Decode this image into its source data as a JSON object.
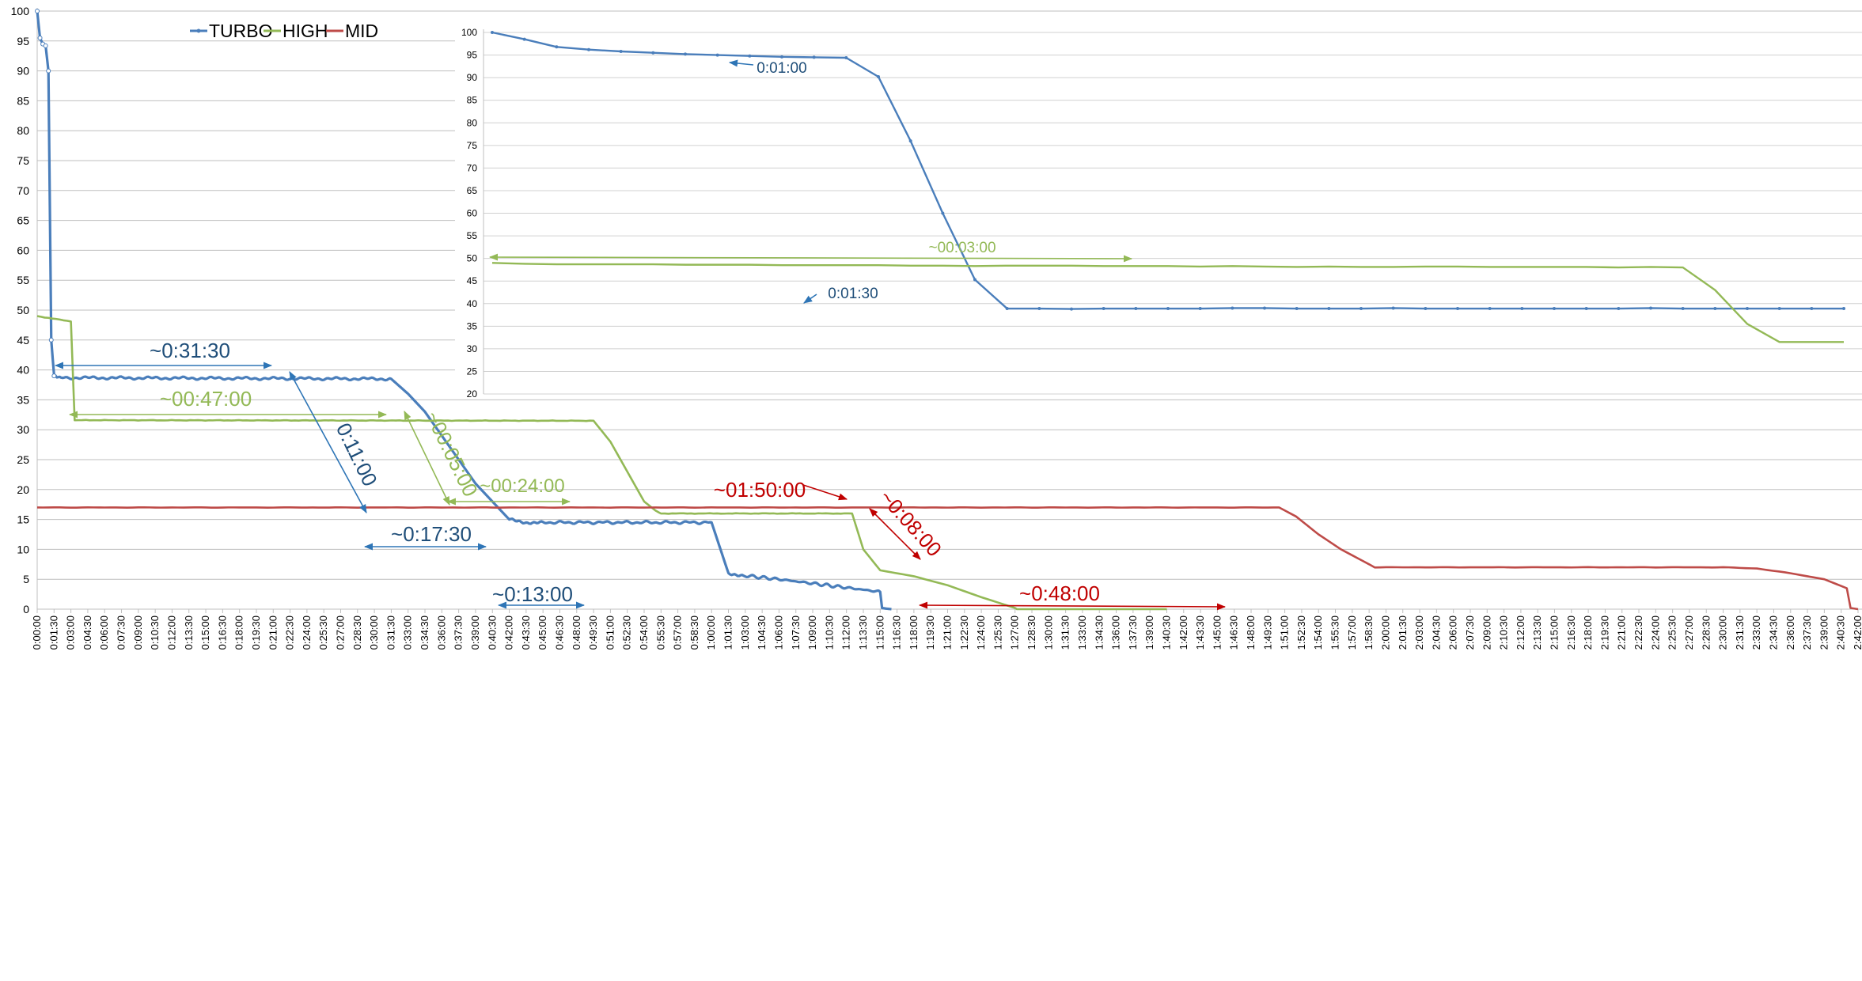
{
  "colors": {
    "turbo": "#4a7ebb",
    "high": "#93b956",
    "mid": "#be4b48",
    "grid": "#bfbfbf",
    "axis_text": "#000000",
    "dark_blue_text": "#1f4e79"
  },
  "chart_data": [
    {
      "type": "line",
      "title": "",
      "xlabel": "",
      "ylabel": "",
      "x_unit": "time (h:mm:ss)",
      "xlim_seconds_label": [
        "0:00:00",
        "2:42:00"
      ],
      "ylim": [
        0,
        100
      ],
      "y_ticks": [
        0,
        5,
        10,
        15,
        20,
        25,
        30,
        35,
        40,
        45,
        50,
        55,
        60,
        65,
        70,
        75,
        80,
        85,
        90,
        95,
        100
      ],
      "x_tick_labels": [
        "0:00:00",
        "0:01:30",
        "0:03:00",
        "0:04:30",
        "0:06:00",
        "0:07:30",
        "0:09:00",
        "0:10:30",
        "0:12:00",
        "0:13:30",
        "0:15:00",
        "0:16:30",
        "0:18:00",
        "0:19:30",
        "0:21:00",
        "0:22:30",
        "0:24:00",
        "0:25:30",
        "0:27:00",
        "0:28:30",
        "0:30:00",
        "0:31:30",
        "0:33:00",
        "0:34:30",
        "0:36:00",
        "0:37:30",
        "0:39:00",
        "0:40:30",
        "0:42:00",
        "0:43:30",
        "0:45:00",
        "0:46:30",
        "0:48:00",
        "0:49:30",
        "0:51:00",
        "0:52:30",
        "0:54:00",
        "0:55:30",
        "0:57:00",
        "0:58:30",
        "1:00:00",
        "1:01:30",
        "1:03:00",
        "1:04:30",
        "1:06:00",
        "1:07:30",
        "1:09:00",
        "1:10:30",
        "1:12:00",
        "1:13:30",
        "1:15:00",
        "1:16:30",
        "1:18:00",
        "1:19:30",
        "1:21:00",
        "1:22:30",
        "1:24:00",
        "1:25:30",
        "1:27:00",
        "1:28:30",
        "1:30:00",
        "1:31:30",
        "1:33:00",
        "1:34:30",
        "1:36:00",
        "1:37:30",
        "1:39:00",
        "1:40:30",
        "1:42:00",
        "1:43:30",
        "1:45:00",
        "1:46:30",
        "1:48:00",
        "1:49:30",
        "1:51:00",
        "1:52:30",
        "1:54:00",
        "1:55:30",
        "1:57:00",
        "1:58:30",
        "2:00:00",
        "2:01:30",
        "2:03:00",
        "2:04:30",
        "2:06:00",
        "2:07:30",
        "2:09:00",
        "2:10:30",
        "2:12:00",
        "2:13:30",
        "2:15:00",
        "2:16:30",
        "2:18:00",
        "2:19:30",
        "2:21:00",
        "2:22:30",
        "2:24:00",
        "2:25:30",
        "2:27:00",
        "2:28:30",
        "2:30:00",
        "2:31:30",
        "2:33:00",
        "2:34:30",
        "2:36:00",
        "2:37:30",
        "2:39:00",
        "2:40:30",
        "2:42:00"
      ],
      "legend": {
        "placement": "top-left",
        "entries": [
          "TURBO",
          "HIGH",
          "MID"
        ]
      },
      "grid": true,
      "series": [
        {
          "name": "TURBO",
          "color": "#4a7ebb",
          "x": [
            "0:00:00",
            "0:00:15",
            "0:00:30",
            "0:00:45",
            "0:01:00",
            "0:01:15",
            "0:01:30",
            "0:01:45",
            "0:02:00",
            "0:31:30",
            "0:33:00",
            "0:34:30",
            "0:36:00",
            "0:37:30",
            "0:39:00",
            "0:40:30",
            "0:42:00",
            "0:43:30",
            "0:45:00",
            "1:00:00",
            "1:01:30",
            "1:03:00",
            "1:06:00",
            "1:09:00",
            "1:12:00",
            "1:15:00",
            "1:15:10",
            "1:15:30",
            "1:16:00"
          ],
          "y": [
            100,
            95.5,
            94.5,
            94.2,
            90,
            45,
            39,
            38.8,
            38.7,
            38.5,
            36,
            33,
            29,
            25,
            21,
            18,
            15,
            14.5,
            14.5,
            14.5,
            6,
            5.6,
            5,
            4.3,
            3.6,
            2.9,
            0.2,
            0.1,
            0
          ]
        },
        {
          "name": "HIGH",
          "color": "#93b956",
          "x": [
            "0:00:00",
            "0:03:00",
            "0:03:20",
            "0:49:30",
            "0:51:00",
            "0:52:30",
            "0:54:00",
            "0:55:00",
            "0:55:30",
            "1:12:30",
            "1:13:30",
            "1:15:00",
            "1:18:00",
            "1:21:00",
            "1:24:00",
            "1:27:00",
            "1:27:10",
            "1:40:30"
          ],
          "y": [
            49,
            48.1,
            31.6,
            31.5,
            28,
            23,
            18,
            16.5,
            16,
            16,
            10,
            6.5,
            5.5,
            4,
            2,
            0.2,
            0,
            0
          ]
        },
        {
          "name": "MID",
          "color": "#be4b48",
          "x": [
            "0:00:00",
            "1:00:00",
            "1:50:30",
            "1:52:00",
            "1:54:00",
            "1:56:00",
            "1:58:00",
            "1:59:00",
            "2:00:30",
            "2:30:00",
            "2:33:00",
            "2:36:00",
            "2:39:00",
            "2:41:00",
            "2:41:20",
            "2:42:00"
          ],
          "y": [
            17,
            17,
            17,
            15.5,
            12.5,
            10,
            8,
            7,
            7,
            7,
            6.8,
            6,
            5,
            3.5,
            0.2,
            0
          ]
        }
      ],
      "annotations": [
        {
          "text": "~0:31:30",
          "color": "#1f4e79"
        },
        {
          "text": "~00:47:00",
          "color": "#93b956"
        },
        {
          "text": "0:11:00",
          "color": "#1f4e79"
        },
        {
          "text": "~00:05:00",
          "color": "#93b956"
        },
        {
          "text": "~00:24:00",
          "color": "#93b956"
        },
        {
          "text": "~0:17:30",
          "color": "#1f4e79"
        },
        {
          "text": "~0:13:00",
          "color": "#1f4e79"
        },
        {
          "text": "~01:50:00",
          "color": "#c00000"
        },
        {
          "text": "~0:08:00",
          "color": "#c00000"
        },
        {
          "text": "~0:48:00",
          "color": "#c00000"
        }
      ]
    },
    {
      "type": "line",
      "title": "",
      "xlabel": "",
      "ylabel": "",
      "inset": true,
      "ylim": [
        20,
        100
      ],
      "y_ticks": [
        20,
        25,
        30,
        35,
        40,
        45,
        50,
        55,
        60,
        65,
        70,
        75,
        80,
        85,
        90,
        95,
        100
      ],
      "grid": true,
      "series": [
        {
          "name": "TURBO",
          "color": "#4a7ebb",
          "y": [
            100,
            98.5,
            96.8,
            96.2,
            95.8,
            95.5,
            95.2,
            95.0,
            94.8,
            94.6,
            94.5,
            94.4,
            90.2,
            76,
            60,
            45.3,
            38.9,
            38.9,
            38.8,
            38.9,
            38.9,
            38.9,
            38.9,
            39.0,
            39.0,
            38.9,
            38.9,
            38.9,
            39.0,
            38.9,
            38.9,
            38.9,
            38.9,
            38.9,
            38.9,
            38.9,
            39.0,
            38.9,
            38.9,
            38.9,
            38.9,
            38.9,
            38.9
          ]
        },
        {
          "name": "HIGH",
          "color": "#93b956",
          "y": [
            49,
            48.8,
            48.7,
            48.7,
            48.7,
            48.7,
            48.6,
            48.6,
            48.6,
            48.5,
            48.5,
            48.5,
            48.5,
            48.4,
            48.4,
            48.3,
            48.4,
            48.4,
            48.4,
            48.3,
            48.3,
            48.3,
            48.2,
            48.3,
            48.2,
            48.1,
            48.2,
            48.1,
            48.1,
            48.2,
            48.2,
            48.1,
            48.1,
            48.1,
            48.1,
            48.0,
            48.1,
            48.0,
            43,
            35.5,
            31.5,
            31.5,
            31.5
          ]
        }
      ],
      "annotations": [
        {
          "text": "0:01:00",
          "color": "#1f4e79"
        },
        {
          "text": "0:01:30",
          "color": "#1f4e79"
        },
        {
          "text": "~00:03:00",
          "color": "#93b956"
        }
      ]
    }
  ]
}
